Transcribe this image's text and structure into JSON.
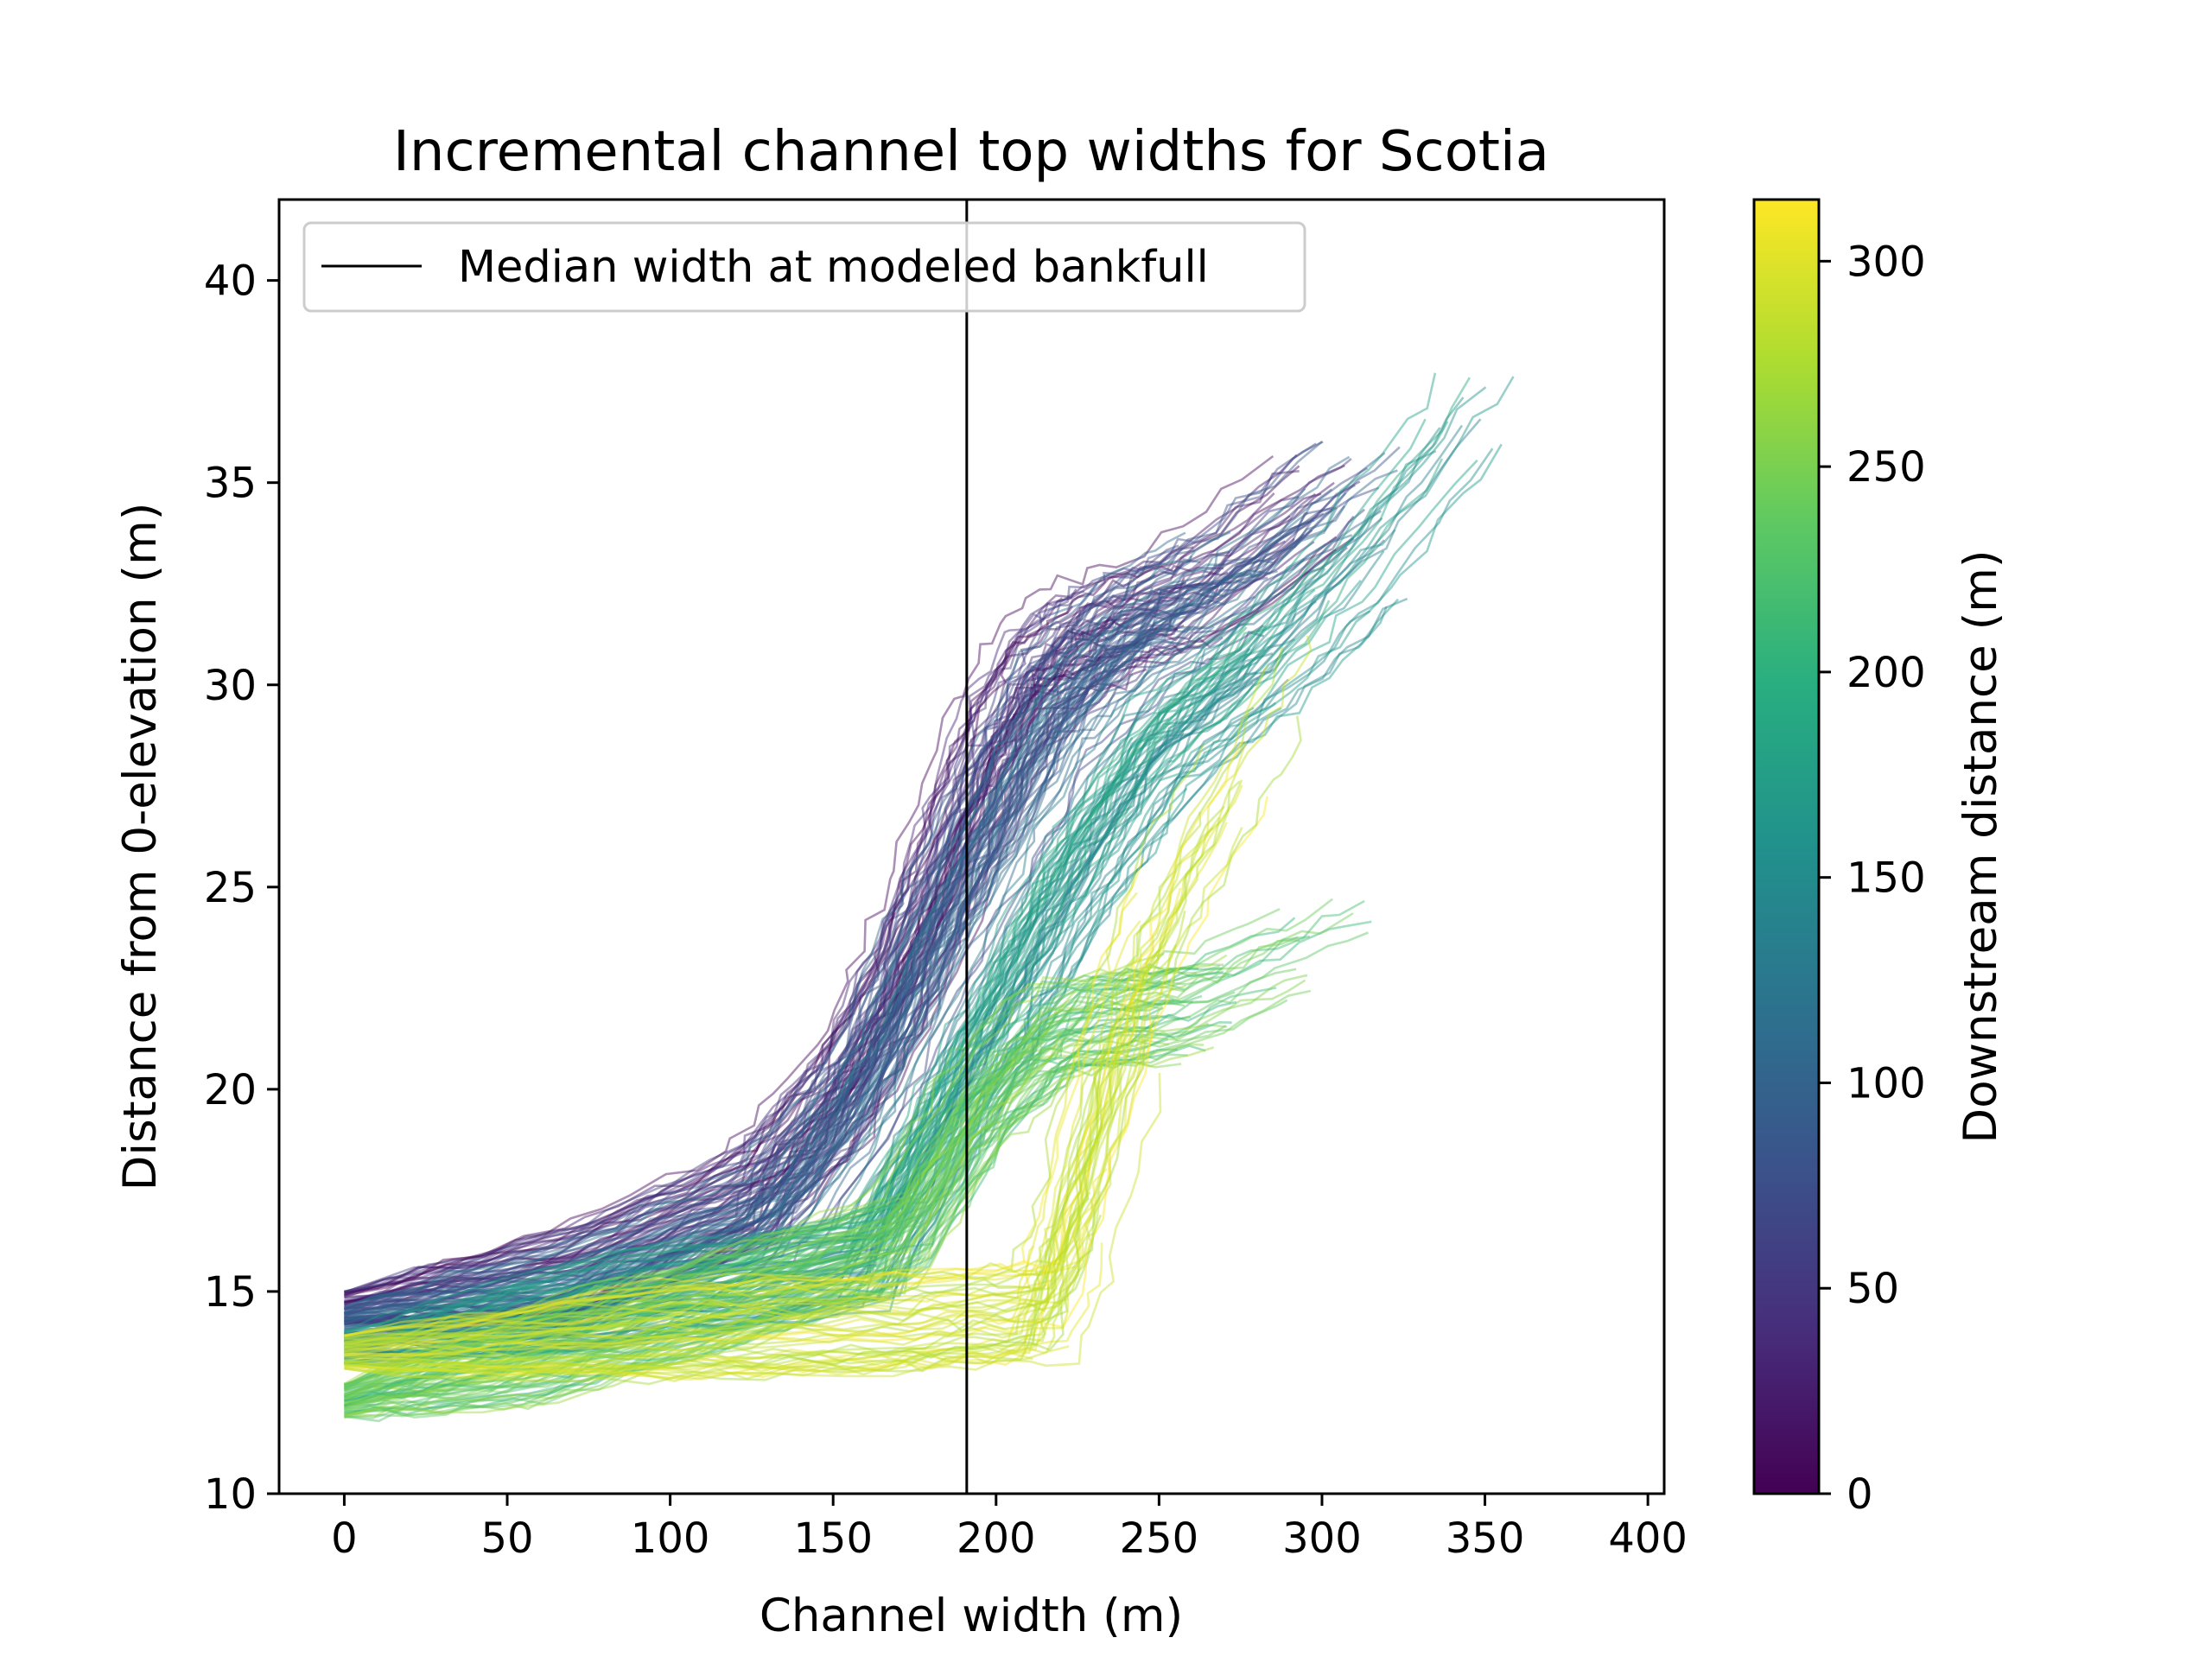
{
  "chart_data": {
    "type": "line",
    "title": "Incremental channel top widths for Scotia",
    "xlabel": "Channel width (m)",
    "ylabel": "Distance from 0-elevation (m)",
    "xlim": [
      -20,
      405
    ],
    "ylim": [
      10,
      42
    ],
    "xticks": [
      0,
      50,
      100,
      150,
      200,
      250,
      300,
      350,
      400
    ],
    "yticks": [
      10,
      15,
      20,
      25,
      30,
      35,
      40
    ],
    "grid": false,
    "legend": {
      "location": "top-left",
      "entries": [
        {
          "label": "Median width at modeled bankfull",
          "color": "#000000"
        }
      ]
    },
    "vertical_line": {
      "label": "Median width at modeled bankfull",
      "x": 191
    },
    "colorbar": {
      "label": "Downstream distance (m)",
      "colormap": "viridis",
      "range": [
        0,
        315
      ],
      "ticks": [
        0,
        50,
        100,
        150,
        200,
        250,
        300
      ]
    },
    "series_groups": [
      {
        "downstream_range": [
          0,
          60
        ],
        "count": 55,
        "color_value": 30,
        "points": [
          [
            0,
            14.6
          ],
          [
            70,
            15.4
          ],
          [
            125,
            17.4
          ],
          [
            150,
            19.6
          ],
          [
            170,
            22.5
          ],
          [
            185,
            25.5
          ],
          [
            200,
            28.5
          ],
          [
            215,
            30.5
          ],
          [
            235,
            31.5
          ],
          [
            260,
            32.2
          ],
          [
            300,
            34.5
          ],
          [
            340,
            37.0
          ]
        ]
      },
      {
        "downstream_range": [
          60,
          130
        ],
        "count": 55,
        "color_value": 95,
        "points": [
          [
            0,
            14.2
          ],
          [
            70,
            15.0
          ],
          [
            130,
            16.8
          ],
          [
            160,
            20.0
          ],
          [
            180,
            23.5
          ],
          [
            200,
            26.5
          ],
          [
            220,
            29.5
          ],
          [
            245,
            31.5
          ],
          [
            270,
            32.5
          ],
          [
            310,
            35.0
          ],
          [
            350,
            37.5
          ]
        ]
      },
      {
        "downstream_range": [
          130,
          200
        ],
        "count": 60,
        "color_value": 165,
        "points": [
          [
            0,
            13.6
          ],
          [
            80,
            14.7
          ],
          [
            160,
            15.8
          ],
          [
            185,
            19.5
          ],
          [
            205,
            22.5
          ],
          [
            225,
            25.5
          ],
          [
            250,
            28.5
          ],
          [
            280,
            30.5
          ],
          [
            310,
            33.0
          ],
          [
            345,
            36.5
          ],
          [
            375,
            39.5
          ]
        ]
      },
      {
        "downstream_range": [
          200,
          270
        ],
        "count": 75,
        "color_value": 235,
        "points": [
          [
            0,
            12.3
          ],
          [
            60,
            13.4
          ],
          [
            120,
            14.8
          ],
          [
            170,
            16.2
          ],
          [
            195,
            19.5
          ],
          [
            220,
            21.5
          ],
          [
            260,
            22.0
          ],
          [
            300,
            23.5
          ],
          [
            320,
            24.5
          ]
        ]
      },
      {
        "downstream_range": [
          270,
          315
        ],
        "count": 50,
        "color_value": 292,
        "points": [
          [
            0,
            13.5
          ],
          [
            100,
            14.0
          ],
          [
            170,
            14.2
          ],
          [
            215,
            14.5
          ],
          [
            225,
            17.0
          ],
          [
            240,
            21.5
          ],
          [
            255,
            24.5
          ],
          [
            275,
            27.5
          ],
          [
            290,
            30.0
          ],
          [
            305,
            31.5
          ]
        ]
      }
    ]
  }
}
